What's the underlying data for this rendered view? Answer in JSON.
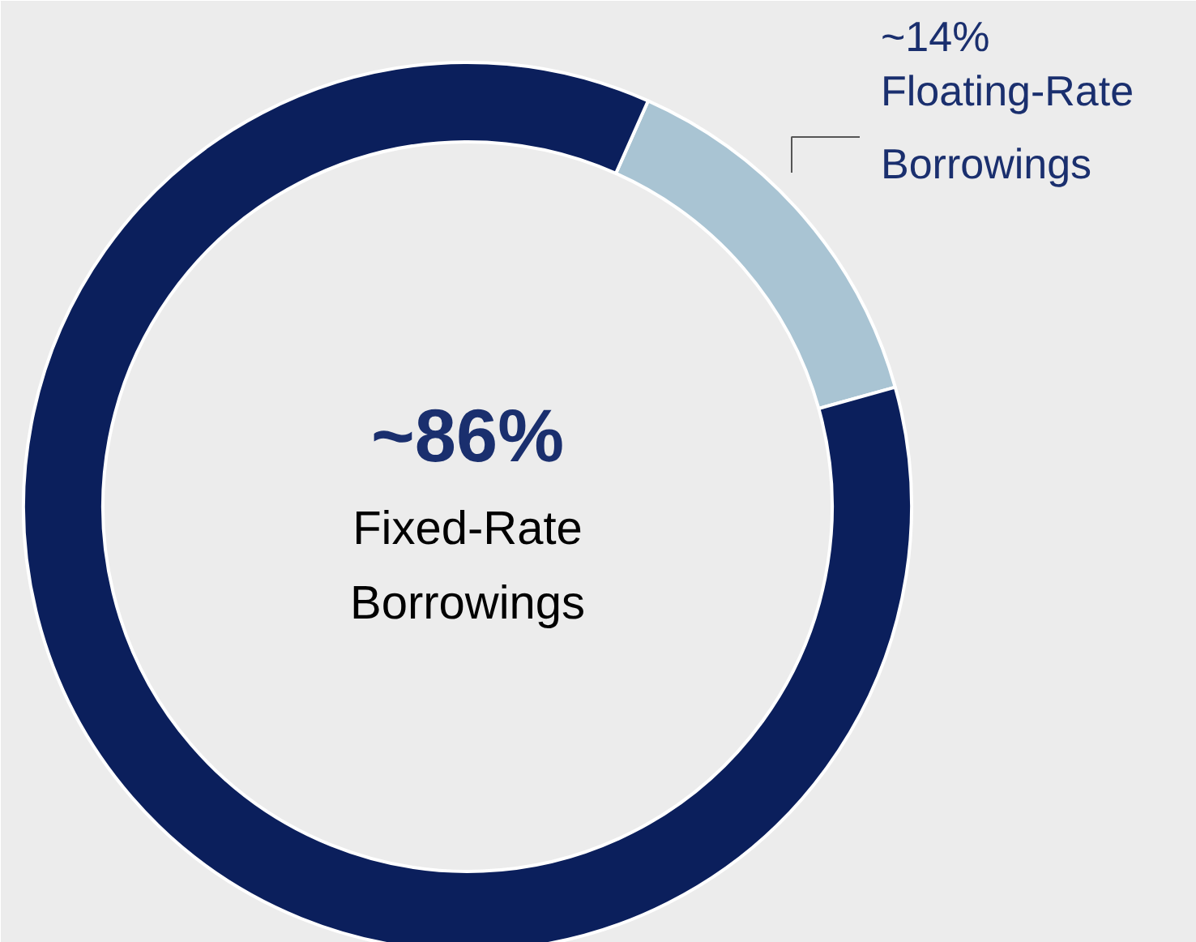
{
  "chart_data": {
    "type": "donut",
    "categories": [
      "Floating-Rate Borrowings",
      "Fixed-Rate Borrowings"
    ],
    "values": [
      14,
      86
    ],
    "colors": [
      "#a9c4d3",
      "#0b1f5c"
    ],
    "value_labels": [
      "~14%",
      "~86%"
    ]
  }
}
